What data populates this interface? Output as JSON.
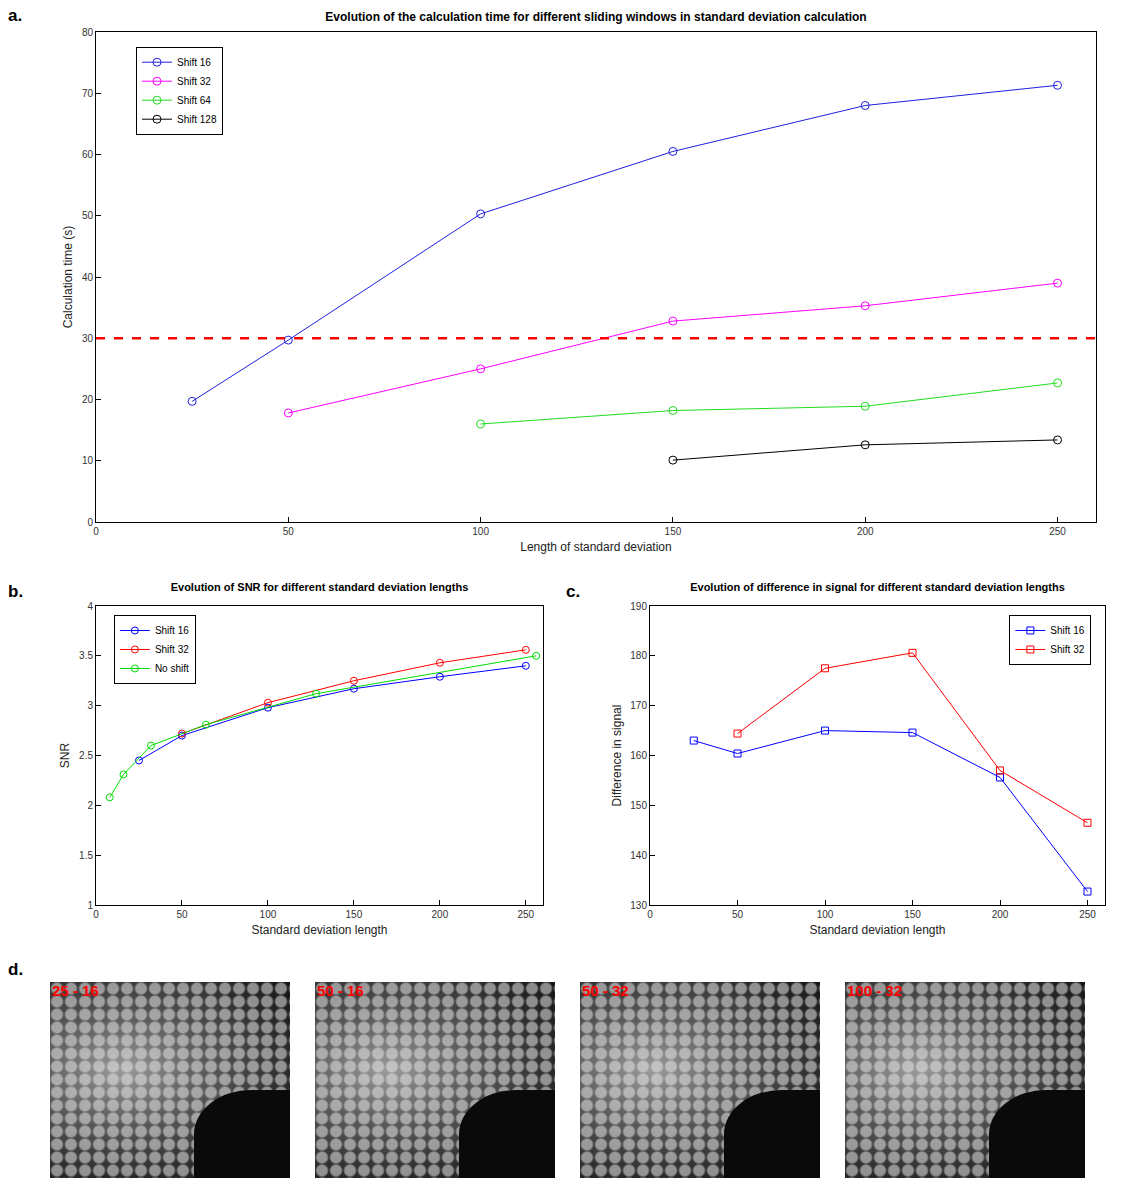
{
  "chart_data": [
    {
      "type": "line",
      "panel_label": "a.",
      "title": "Evolution of the calculation time for different sliding windows in standard deviation calculation",
      "x_label": "Length of standard deviation",
      "y_label": "Calculation time (s)",
      "xlim": [
        0,
        260
      ],
      "xticks": [
        0,
        50,
        100,
        150,
        200,
        250
      ],
      "ylim": [
        0,
        80
      ],
      "yticks": [
        0,
        10,
        20,
        30,
        40,
        50,
        60,
        70,
        80
      ],
      "grid": false,
      "legend": "upper left",
      "marker": "circle",
      "line_style": "solid",
      "reference_lines": [
        {
          "value": 30,
          "color": "#ff0000",
          "line_style": "dash"
        }
      ],
      "series": [
        {
          "name": "Shift 16",
          "color": "#2020e0",
          "x": [
            25,
            50,
            100,
            150,
            200,
            250
          ],
          "values": [
            19.7,
            29.7,
            50.3,
            60.5,
            68.0,
            71.3
          ]
        },
        {
          "name": "Shift 32",
          "color": "#ff00ff",
          "x": [
            50,
            100,
            150,
            200,
            250
          ],
          "values": [
            17.8,
            25.0,
            32.8,
            35.3,
            39.0
          ]
        },
        {
          "name": "Shift 64",
          "color": "#22dd22",
          "x": [
            100,
            150,
            200,
            250
          ],
          "values": [
            16.0,
            18.2,
            18.9,
            22.7
          ]
        },
        {
          "name": "Shift 128",
          "color": "#000000",
          "x": [
            150,
            200,
            250
          ],
          "values": [
            10.1,
            12.6,
            13.4
          ]
        }
      ]
    },
    {
      "type": "line",
      "panel_label": "b.",
      "title": "Evolution of SNR for different standard deviation lengths",
      "x_label": "Standard deviation length",
      "y_label": "SNR",
      "xlim": [
        0,
        260
      ],
      "xticks": [
        0,
        50,
        100,
        150,
        200,
        250
      ],
      "ylim": [
        1,
        4
      ],
      "yticks": [
        1,
        1.5,
        2,
        2.5,
        3,
        3.5,
        4
      ],
      "grid": false,
      "legend": "upper left",
      "marker": "circle",
      "line_style": "solid",
      "series": [
        {
          "name": "Shift 16",
          "color": "#0000ff",
          "x": [
            25,
            50,
            100,
            150,
            200,
            250
          ],
          "values": [
            2.45,
            2.7,
            2.98,
            3.17,
            3.29,
            3.4
          ]
        },
        {
          "name": "Shift 32",
          "color": "#ff0000",
          "x": [
            50,
            100,
            150,
            200,
            250
          ],
          "values": [
            2.72,
            3.03,
            3.25,
            3.43,
            3.56
          ]
        },
        {
          "name": "No shift",
          "color": "#00dd00",
          "x": [
            8,
            16,
            32,
            64,
            128,
            256
          ],
          "values": [
            2.08,
            2.31,
            2.6,
            2.81,
            3.12,
            3.5
          ]
        }
      ]
    },
    {
      "type": "line",
      "panel_label": "c.",
      "title": "Evolution of difference in signal for different standard deviation lengths",
      "x_label": "Standard deviation length",
      "y_label": "Difference in signal",
      "xlim": [
        0,
        260
      ],
      "xticks": [
        0,
        50,
        100,
        150,
        200,
        250
      ],
      "ylim": [
        130,
        190
      ],
      "yticks": [
        130,
        140,
        150,
        160,
        170,
        180,
        190
      ],
      "grid": false,
      "legend": "upper right",
      "marker": "square",
      "line_style": "solid",
      "series": [
        {
          "name": "Shift 16",
          "color": "#0000ff",
          "x": [
            25,
            50,
            100,
            150,
            200,
            250
          ],
          "values": [
            163.0,
            160.4,
            165.0,
            164.6,
            155.6,
            132.7
          ]
        },
        {
          "name": "Shift 32",
          "color": "#ff0000",
          "x": [
            50,
            100,
            150,
            200,
            250
          ],
          "values": [
            164.4,
            177.5,
            180.6,
            157.0,
            146.5
          ]
        }
      ]
    }
  ],
  "images": {
    "panel_label": "d.",
    "labels": [
      "25 - 16",
      "50 - 16",
      "50 - 32",
      "100 - 32"
    ]
  }
}
